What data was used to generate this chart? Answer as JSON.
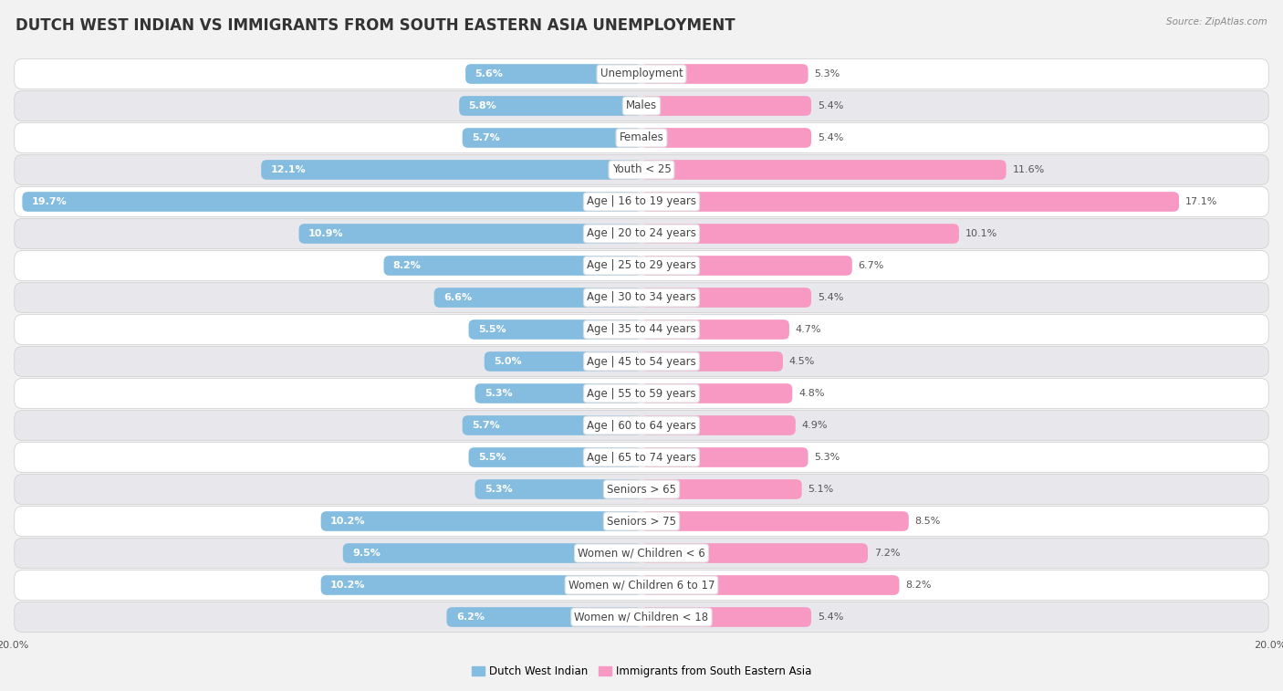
{
  "title": "DUTCH WEST INDIAN VS IMMIGRANTS FROM SOUTH EASTERN ASIA UNEMPLOYMENT",
  "source": "Source: ZipAtlas.com",
  "categories": [
    "Unemployment",
    "Males",
    "Females",
    "Youth < 25",
    "Age | 16 to 19 years",
    "Age | 20 to 24 years",
    "Age | 25 to 29 years",
    "Age | 30 to 34 years",
    "Age | 35 to 44 years",
    "Age | 45 to 54 years",
    "Age | 55 to 59 years",
    "Age | 60 to 64 years",
    "Age | 65 to 74 years",
    "Seniors > 65",
    "Seniors > 75",
    "Women w/ Children < 6",
    "Women w/ Children 6 to 17",
    "Women w/ Children < 18"
  ],
  "left_values": [
    5.6,
    5.8,
    5.7,
    12.1,
    19.7,
    10.9,
    8.2,
    6.6,
    5.5,
    5.0,
    5.3,
    5.7,
    5.5,
    5.3,
    10.2,
    9.5,
    10.2,
    6.2
  ],
  "right_values": [
    5.3,
    5.4,
    5.4,
    11.6,
    17.1,
    10.1,
    6.7,
    5.4,
    4.7,
    4.5,
    4.8,
    4.9,
    5.3,
    5.1,
    8.5,
    7.2,
    8.2,
    5.4
  ],
  "left_color": "#85bde0",
  "right_color": "#f799c3",
  "left_label": "Dutch West Indian",
  "right_label": "Immigrants from South Eastern Asia",
  "max_val": 20.0,
  "bg_color": "#f2f2f2",
  "row_colors": [
    "#ffffff",
    "#e8e8ec"
  ],
  "title_fontsize": 12,
  "label_fontsize": 8.5,
  "value_fontsize": 8,
  "source_fontsize": 7.5
}
